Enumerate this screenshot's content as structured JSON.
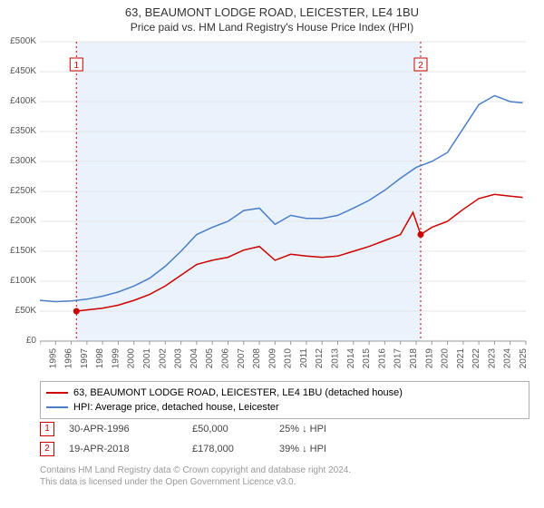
{
  "title": "63, BEAUMONT LODGE ROAD, LEICESTER, LE4 1BU",
  "subtitle": "Price paid vs. HM Land Registry's House Price Index (HPI)",
  "chart": {
    "type": "line",
    "background_color": "#ffffff",
    "shade_color": "#eaf3fb",
    "grid_color": "#e6e6e6",
    "x_years": [
      1994,
      1995,
      1996,
      1997,
      1998,
      1999,
      2000,
      2001,
      2002,
      2003,
      2004,
      2005,
      2006,
      2007,
      2008,
      2009,
      2010,
      2011,
      2012,
      2013,
      2014,
      2015,
      2016,
      2017,
      2018,
      2019,
      2020,
      2021,
      2022,
      2023,
      2024,
      2025
    ],
    "ylim": [
      0,
      500000
    ],
    "yticks": [
      0,
      50000,
      100000,
      150000,
      200000,
      250000,
      300000,
      350000,
      400000,
      450000,
      500000
    ],
    "ytick_labels": [
      "£0",
      "£50K",
      "£100K",
      "£150K",
      "£200K",
      "£250K",
      "£300K",
      "£350K",
      "£400K",
      "£450K",
      "£500K"
    ],
    "series": [
      {
        "name": "property",
        "label": "63, BEAUMONT LODGE ROAD, LEICESTER, LE4 1BU (detached house)",
        "color": "#cc0000",
        "line_width": 1.5,
        "data": [
          [
            1996.33,
            50000
          ],
          [
            1997,
            52000
          ],
          [
            1998,
            55000
          ],
          [
            1999,
            60000
          ],
          [
            2000,
            68000
          ],
          [
            2001,
            78000
          ],
          [
            2002,
            92000
          ],
          [
            2003,
            110000
          ],
          [
            2004,
            128000
          ],
          [
            2005,
            135000
          ],
          [
            2006,
            140000
          ],
          [
            2007,
            152000
          ],
          [
            2008,
            158000
          ],
          [
            2009,
            135000
          ],
          [
            2010,
            145000
          ],
          [
            2011,
            142000
          ],
          [
            2012,
            140000
          ],
          [
            2013,
            142000
          ],
          [
            2014,
            150000
          ],
          [
            2015,
            158000
          ],
          [
            2016,
            168000
          ],
          [
            2017,
            178000
          ],
          [
            2017.8,
            215000
          ],
          [
            2018.29,
            178000
          ],
          [
            2019,
            190000
          ],
          [
            2020,
            200000
          ],
          [
            2021,
            220000
          ],
          [
            2022,
            238000
          ],
          [
            2023,
            245000
          ],
          [
            2024,
            242000
          ],
          [
            2024.8,
            240000
          ]
        ]
      },
      {
        "name": "hpi",
        "label": "HPI: Average price, detached house, Leicester",
        "color": "#4a7ec8",
        "line_width": 1.5,
        "data": [
          [
            1994,
            68000
          ],
          [
            1995,
            66000
          ],
          [
            1996,
            67000
          ],
          [
            1997,
            70000
          ],
          [
            1998,
            75000
          ],
          [
            1999,
            82000
          ],
          [
            2000,
            92000
          ],
          [
            2001,
            105000
          ],
          [
            2002,
            125000
          ],
          [
            2003,
            150000
          ],
          [
            2004,
            178000
          ],
          [
            2005,
            190000
          ],
          [
            2006,
            200000
          ],
          [
            2007,
            218000
          ],
          [
            2008,
            222000
          ],
          [
            2009,
            195000
          ],
          [
            2010,
            210000
          ],
          [
            2011,
            205000
          ],
          [
            2012,
            205000
          ],
          [
            2013,
            210000
          ],
          [
            2014,
            222000
          ],
          [
            2015,
            235000
          ],
          [
            2016,
            252000
          ],
          [
            2017,
            272000
          ],
          [
            2018,
            290000
          ],
          [
            2019,
            300000
          ],
          [
            2020,
            315000
          ],
          [
            2021,
            355000
          ],
          [
            2022,
            395000
          ],
          [
            2023,
            410000
          ],
          [
            2024,
            400000
          ],
          [
            2024.8,
            398000
          ]
        ]
      }
    ],
    "sale_markers": [
      {
        "n": 1,
        "x": 1996.33,
        "y": 50000,
        "color": "#cc0000"
      },
      {
        "n": 2,
        "x": 2018.29,
        "y": 178000,
        "color": "#cc0000"
      }
    ],
    "marker_label_y_offset": -258,
    "marker_label_size": 14,
    "marker_label_border": "#cc0000",
    "font_size_ticks": 10
  },
  "legend": {
    "rows": [
      {
        "color": "#cc0000",
        "label": "63, BEAUMONT LODGE ROAD, LEICESTER, LE4 1BU (detached house)"
      },
      {
        "color": "#4a7ec8",
        "label": "HPI: Average price, detached house, Leicester"
      }
    ]
  },
  "sales": [
    {
      "n": "1",
      "date": "30-APR-1996",
      "price": "£50,000",
      "diff": "25% ↓ HPI"
    },
    {
      "n": "2",
      "date": "19-APR-2018",
      "price": "£178,000",
      "diff": "39% ↓ HPI"
    }
  ],
  "footer": {
    "line1": "Contains HM Land Registry data © Crown copyright and database right 2024.",
    "line2": "This data is licensed under the Open Government Licence v3.0."
  }
}
